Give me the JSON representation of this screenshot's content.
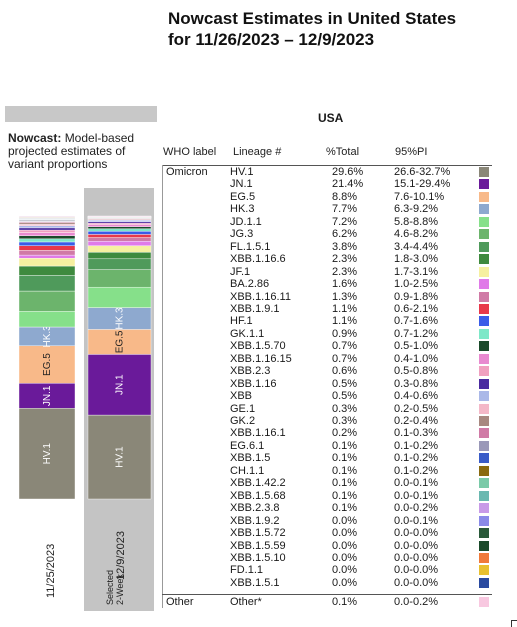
{
  "title": {
    "line1": "Nowcast Estimates in United States",
    "line2": "for 11/26/2023 – 12/9/2023"
  },
  "left_panel": {
    "subtitle_bold": "Nowcast:",
    "subtitle_rest": "Model-based projected estimates of variant proportions",
    "bar_labels": [
      "11/25/2023",
      "12/9/2023"
    ],
    "selected_label": "Selected 2-Week"
  },
  "table": {
    "region": "USA",
    "headers": [
      "WHO label",
      "Lineage #",
      "%Total",
      "95%PI"
    ]
  },
  "colors": {
    "HV.1": "#8a8778",
    "JN.1": "#6a1a9a",
    "EG.5": "#f8b989",
    "HK.3": "#8ea9cf",
    "JD.1.1": "#86e08a",
    "JG.3": "#6cb46c",
    "FL.1.5.1": "#4f9a5b",
    "XBB.1.16.6": "#3e8a3e",
    "JF.1": "#f6f0a0",
    "BA.2.86": "#e07ae8",
    "XBB.1.16.11": "#d07aa6",
    "XBB.1.9.1": "#e8384a",
    "HF.1": "#3a5ce8",
    "GK.1.1": "#7ee8c8",
    "XBB.1.5.70": "#1a4a2a",
    "XBB.1.16.15": "#e88ad0",
    "XBB.2.3": "#f0a0c0",
    "XBB.1.16": "#4a2aa0",
    "XBB": "#aab8e8",
    "GE.1": "#f4b8c8",
    "GK.2": "#a88880",
    "XBB.1.16.1": "#d07aa6",
    "EG.6.1": "#9a98b8",
    "XBB.1.5": "#3a5cc8",
    "CH.1.1": "#8a6a10",
    "XBB.1.42.2": "#7acaa8",
    "XBB.1.5.68": "#6ab8b0",
    "XBB.2.3.8": "#c89ae8",
    "XBB.1.9.2": "#8a8ae8",
    "XBB.1.5.72": "#2a5a3a",
    "XBB.1.5.59": "#1a4a2a",
    "XBB.1.5.10": "#f07a3a",
    "FD.1.1": "#e8c030",
    "XBB.1.5.1": "#2a4aa0",
    "Other*": "#f8c8e0"
  },
  "chart_data": {
    "type": "bar",
    "stacked": true,
    "categories": [
      "11/25/2023",
      "12/9/2023"
    ],
    "category_proportions_estimated": true,
    "series": [
      {
        "name": "HV.1",
        "values": [
          29.0,
          29.6
        ]
      },
      {
        "name": "JN.1",
        "values": [
          8.0,
          21.4
        ]
      },
      {
        "name": "EG.5",
        "values": [
          12.0,
          8.8
        ]
      },
      {
        "name": "HK.3",
        "values": [
          6.0,
          7.7
        ]
      },
      {
        "name": "JD.1.1",
        "values": [
          5.0,
          7.2
        ]
      },
      {
        "name": "JG.3",
        "values": [
          6.5,
          6.2
        ]
      },
      {
        "name": "FL.1.5.1",
        "values": [
          5.0,
          3.8
        ]
      },
      {
        "name": "XBB.1.16.6",
        "values": [
          3.0,
          2.3
        ]
      },
      {
        "name": "JF.1",
        "values": [
          2.5,
          2.3
        ]
      },
      {
        "name": "BA.2.86",
        "values": [
          1.0,
          1.6
        ]
      },
      {
        "name": "XBB.1.16.11",
        "values": [
          1.5,
          1.3
        ]
      },
      {
        "name": "XBB.1.9.1",
        "values": [
          1.5,
          1.1
        ]
      },
      {
        "name": "HF.1",
        "values": [
          1.2,
          1.1
        ]
      },
      {
        "name": "GK.1.1",
        "values": [
          1.0,
          0.9
        ]
      },
      {
        "name": "XBB.1.5.70",
        "values": [
          1.0,
          0.7
        ]
      },
      {
        "name": "XBB.1.16.15",
        "values": [
          1.0,
          0.7
        ]
      },
      {
        "name": "XBB.2.3",
        "values": [
          0.8,
          0.6
        ]
      },
      {
        "name": "XBB.1.16",
        "values": [
          0.7,
          0.5
        ]
      },
      {
        "name": "XBB",
        "values": [
          0.7,
          0.5
        ]
      },
      {
        "name": "GE.1",
        "values": [
          0.5,
          0.3
        ]
      },
      {
        "name": "GK.2",
        "values": [
          0.5,
          0.3
        ]
      },
      {
        "name": "XBB.1.16.1",
        "values": [
          0.3,
          0.2
        ]
      },
      {
        "name": "EG.6.1",
        "values": [
          0.2,
          0.1
        ]
      },
      {
        "name": "XBB.1.5",
        "values": [
          0.2,
          0.1
        ]
      },
      {
        "name": "CH.1.1",
        "values": [
          0.2,
          0.1
        ]
      },
      {
        "name": "XBB.1.42.2",
        "values": [
          0.2,
          0.1
        ]
      },
      {
        "name": "XBB.1.5.68",
        "values": [
          0.1,
          0.1
        ]
      },
      {
        "name": "XBB.2.3.8",
        "values": [
          0.1,
          0.1
        ]
      },
      {
        "name": "XBB.1.9.2",
        "values": [
          0.1,
          0.0
        ]
      },
      {
        "name": "XBB.1.5.72",
        "values": [
          0.1,
          0.0
        ]
      },
      {
        "name": "XBB.1.5.59",
        "values": [
          0.1,
          0.0
        ]
      },
      {
        "name": "XBB.1.5.10",
        "values": [
          0.1,
          0.0
        ]
      },
      {
        "name": "FD.1.1",
        "values": [
          0.1,
          0.0
        ]
      },
      {
        "name": "XBB.1.5.1",
        "values": [
          0.1,
          0.0
        ]
      },
      {
        "name": "Other*",
        "values": [
          0.2,
          0.1
        ]
      }
    ],
    "bar_labels": {
      "HV.1": "HV.1",
      "JN.1": "JN.1",
      "EG.5": "EG.5",
      "HK.3": "HK.3"
    },
    "rows": [
      {
        "who": "Omicron",
        "lineage": "HV.1",
        "pct": "29.6%",
        "pi": "26.6-32.7%"
      },
      {
        "who": "",
        "lineage": "JN.1",
        "pct": "21.4%",
        "pi": "15.1-29.4%"
      },
      {
        "who": "",
        "lineage": "EG.5",
        "pct": "8.8%",
        "pi": "7.6-10.1%"
      },
      {
        "who": "",
        "lineage": "HK.3",
        "pct": "7.7%",
        "pi": "6.3-9.2%"
      },
      {
        "who": "",
        "lineage": "JD.1.1",
        "pct": "7.2%",
        "pi": "5.8-8.8%"
      },
      {
        "who": "",
        "lineage": "JG.3",
        "pct": "6.2%",
        "pi": "4.6-8.2%"
      },
      {
        "who": "",
        "lineage": "FL.1.5.1",
        "pct": "3.8%",
        "pi": "3.4-4.4%"
      },
      {
        "who": "",
        "lineage": "XBB.1.16.6",
        "pct": "2.3%",
        "pi": "1.8-3.0%"
      },
      {
        "who": "",
        "lineage": "JF.1",
        "pct": "2.3%",
        "pi": "1.7-3.1%"
      },
      {
        "who": "",
        "lineage": "BA.2.86",
        "pct": "1.6%",
        "pi": "1.0-2.5%"
      },
      {
        "who": "",
        "lineage": "XBB.1.16.11",
        "pct": "1.3%",
        "pi": "0.9-1.8%"
      },
      {
        "who": "",
        "lineage": "XBB.1.9.1",
        "pct": "1.1%",
        "pi": "0.6-2.1%"
      },
      {
        "who": "",
        "lineage": "HF.1",
        "pct": "1.1%",
        "pi": "0.7-1.6%"
      },
      {
        "who": "",
        "lineage": "GK.1.1",
        "pct": "0.9%",
        "pi": "0.7-1.2%"
      },
      {
        "who": "",
        "lineage": "XBB.1.5.70",
        "pct": "0.7%",
        "pi": "0.5-1.0%"
      },
      {
        "who": "",
        "lineage": "XBB.1.16.15",
        "pct": "0.7%",
        "pi": "0.4-1.0%"
      },
      {
        "who": "",
        "lineage": "XBB.2.3",
        "pct": "0.6%",
        "pi": "0.5-0.8%"
      },
      {
        "who": "",
        "lineage": "XBB.1.16",
        "pct": "0.5%",
        "pi": "0.3-0.8%"
      },
      {
        "who": "",
        "lineage": "XBB",
        "pct": "0.5%",
        "pi": "0.4-0.6%"
      },
      {
        "who": "",
        "lineage": "GE.1",
        "pct": "0.3%",
        "pi": "0.2-0.5%"
      },
      {
        "who": "",
        "lineage": "GK.2",
        "pct": "0.3%",
        "pi": "0.2-0.4%"
      },
      {
        "who": "",
        "lineage": "XBB.1.16.1",
        "pct": "0.2%",
        "pi": "0.1-0.3%"
      },
      {
        "who": "",
        "lineage": "EG.6.1",
        "pct": "0.1%",
        "pi": "0.1-0.2%"
      },
      {
        "who": "",
        "lineage": "XBB.1.5",
        "pct": "0.1%",
        "pi": "0.1-0.2%"
      },
      {
        "who": "",
        "lineage": "CH.1.1",
        "pct": "0.1%",
        "pi": "0.1-0.2%"
      },
      {
        "who": "",
        "lineage": "XBB.1.42.2",
        "pct": "0.1%",
        "pi": "0.0-0.1%"
      },
      {
        "who": "",
        "lineage": "XBB.1.5.68",
        "pct": "0.1%",
        "pi": "0.0-0.1%"
      },
      {
        "who": "",
        "lineage": "XBB.2.3.8",
        "pct": "0.1%",
        "pi": "0.0-0.2%"
      },
      {
        "who": "",
        "lineage": "XBB.1.9.2",
        "pct": "0.0%",
        "pi": "0.0-0.1%"
      },
      {
        "who": "",
        "lineage": "XBB.1.5.72",
        "pct": "0.0%",
        "pi": "0.0-0.0%"
      },
      {
        "who": "",
        "lineage": "XBB.1.5.59",
        "pct": "0.0%",
        "pi": "0.0-0.0%"
      },
      {
        "who": "",
        "lineage": "XBB.1.5.10",
        "pct": "0.0%",
        "pi": "0.0-0.0%"
      },
      {
        "who": "",
        "lineage": "FD.1.1",
        "pct": "0.0%",
        "pi": "0.0-0.0%"
      },
      {
        "who": "",
        "lineage": "XBB.1.5.1",
        "pct": "0.0%",
        "pi": "0.0-0.0%"
      },
      {
        "who": "Other",
        "lineage": "Other*",
        "pct": "0.1%",
        "pi": "0.0-0.2%"
      }
    ]
  }
}
